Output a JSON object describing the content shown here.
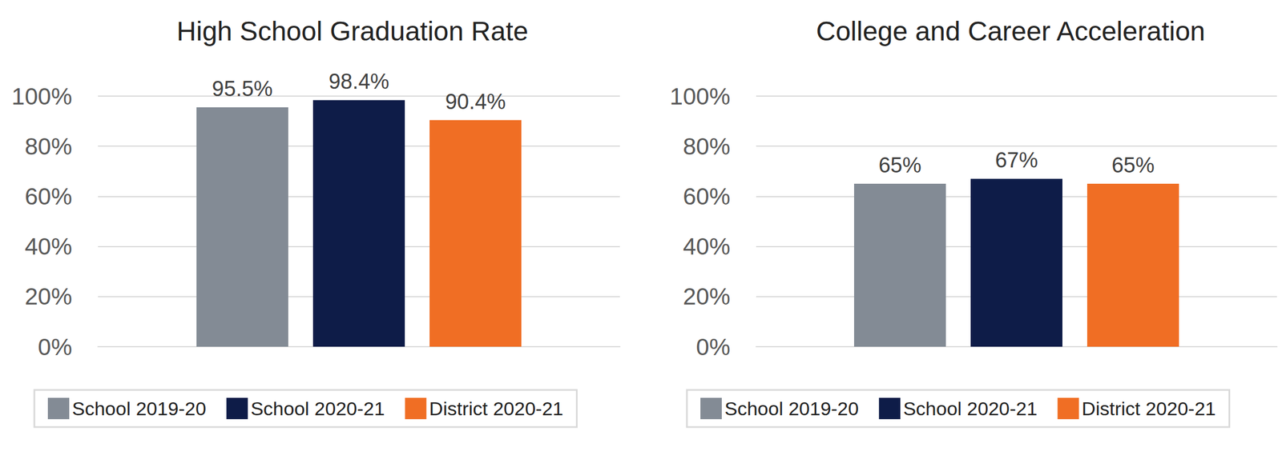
{
  "chart_data": [
    {
      "type": "bar",
      "title": "High School Graduation Rate",
      "categories": [
        null
      ],
      "series": [
        {
          "name": "School 2019-20",
          "color": "#838b95",
          "values": [
            95.5
          ],
          "value_labels": [
            "95.5%"
          ]
        },
        {
          "name": "School 2020-21",
          "color": "#0e1c48",
          "values": [
            98.4
          ],
          "value_labels": [
            "98.4%"
          ]
        },
        {
          "name": "District 2020-21",
          "color": "#f06e24",
          "values": [
            90.4
          ],
          "value_labels": [
            "90.4%"
          ]
        }
      ],
      "ylim": [
        0,
        100
      ],
      "yticks": [
        {
          "value": 0,
          "label": "0%"
        },
        {
          "value": 20,
          "label": "20%"
        },
        {
          "value": 40,
          "label": "40%"
        },
        {
          "value": 60,
          "label": "60%"
        },
        {
          "value": 80,
          "label": "80%"
        },
        {
          "value": 100,
          "label": "100%"
        }
      ],
      "grid": true,
      "data_labels": true,
      "legend": "bottom",
      "tick_labels": "y"
    },
    {
      "type": "bar",
      "title": "College and Career Acceleration",
      "categories": [
        null
      ],
      "series": [
        {
          "name": "School 2019-20",
          "color": "#838b95",
          "values": [
            65
          ],
          "value_labels": [
            "65%"
          ]
        },
        {
          "name": "School 2020-21",
          "color": "#0e1c48",
          "values": [
            67
          ],
          "value_labels": [
            "67%"
          ]
        },
        {
          "name": "District 2020-21",
          "color": "#f06e24",
          "values": [
            65
          ],
          "value_labels": [
            "65%"
          ]
        }
      ],
      "ylim": [
        0,
        100
      ],
      "yticks": [
        {
          "value": 0,
          "label": "0%"
        },
        {
          "value": 20,
          "label": "20%"
        },
        {
          "value": 40,
          "label": "40%"
        },
        {
          "value": 60,
          "label": "60%"
        },
        {
          "value": 80,
          "label": "80%"
        },
        {
          "value": 100,
          "label": "100%"
        }
      ],
      "grid": true,
      "data_labels": true,
      "legend": "bottom",
      "tick_labels": "y"
    }
  ]
}
